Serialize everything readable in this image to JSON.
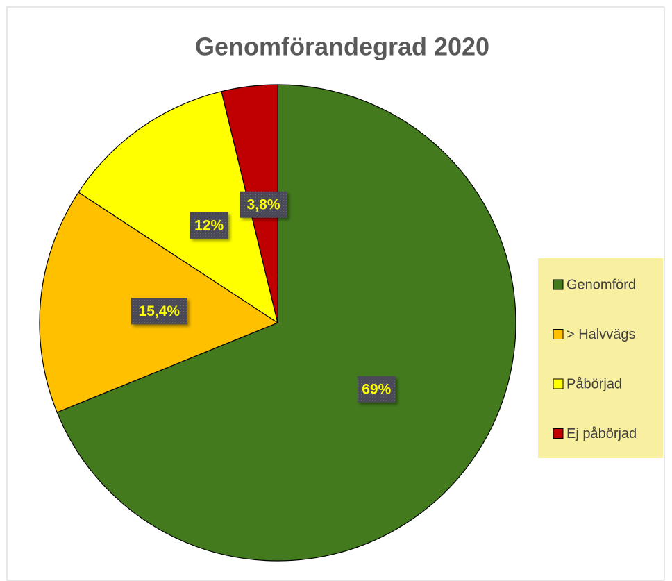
{
  "chart_data": {
    "type": "pie",
    "title": "Genomförandegrad 2020",
    "categories": [
      "Genomförd",
      "> Halvvägs",
      "Påbörjad",
      "Ej påbörjad"
    ],
    "values": [
      69,
      15.4,
      12,
      3.8
    ],
    "value_labels": [
      "69%",
      "15,4%",
      "12%",
      "3,8%"
    ],
    "colors": [
      "#437a1e",
      "#ffc000",
      "#ffff00",
      "#c00000"
    ],
    "legend": "right"
  }
}
